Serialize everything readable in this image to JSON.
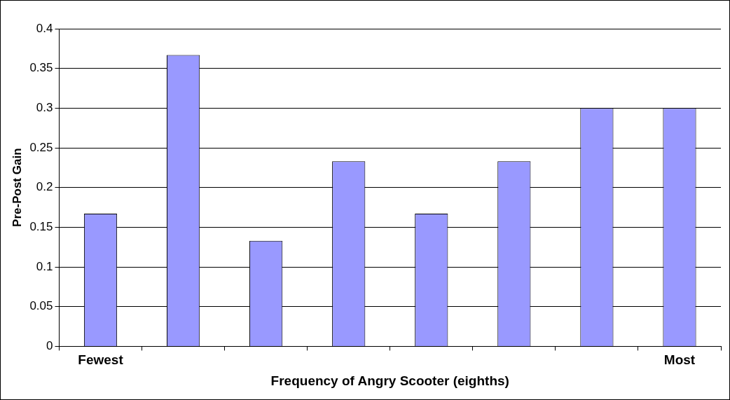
{
  "chart_data": {
    "type": "bar",
    "xlabel": "Frequency of Angry Scooter (eighths)",
    "ylabel": "Pre-Post Gain",
    "categories": [
      "Fewest",
      null,
      null,
      null,
      null,
      null,
      null,
      "Most"
    ],
    "values": [
      0.167,
      0.367,
      0.133,
      0.233,
      0.167,
      0.233,
      0.3,
      0.3
    ],
    "color": "#9999ff",
    "ylim": [
      0,
      0.4
    ],
    "yticks": [
      0,
      0.05,
      0.1,
      0.15,
      0.2,
      0.25,
      0.3,
      0.35,
      0.4
    ],
    "grid": "y"
  }
}
